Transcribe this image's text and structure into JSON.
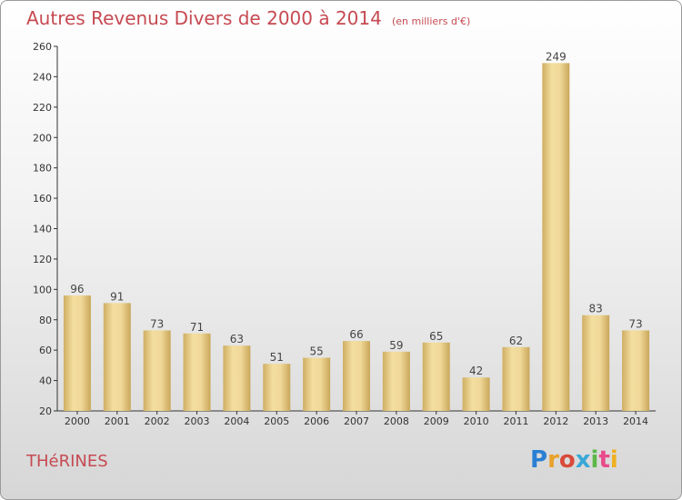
{
  "header": {
    "title": "Autres Revenus Divers de 2000 à 2014",
    "subtitle": "(en milliers d'€)"
  },
  "footer": {
    "town": "THéRINES",
    "logo_text": "Proxiti",
    "logo_colors": [
      "#2a7fd4",
      "#e8a12a",
      "#d94a3a",
      "#3aa8d8",
      "#5cb848",
      "#e84a8a",
      "#f0b020"
    ]
  },
  "colors": {
    "bar": "#e3c67f",
    "bar_light": "#f6e2a8",
    "axis": "#333333",
    "accent": "#c64a52"
  },
  "chart_data": {
    "type": "bar",
    "categories": [
      "2000",
      "2001",
      "2002",
      "2003",
      "2004",
      "2005",
      "2006",
      "2007",
      "2008",
      "2009",
      "2010",
      "2011",
      "2012",
      "2013",
      "2014"
    ],
    "values": [
      96,
      91,
      73,
      71,
      63,
      51,
      55,
      66,
      59,
      65,
      42,
      62,
      249,
      83,
      73
    ],
    "ylim": [
      20,
      260
    ],
    "yticks": [
      20,
      40,
      60,
      80,
      100,
      120,
      140,
      160,
      180,
      200,
      220,
      240,
      260
    ],
    "grid": false,
    "legend": "none"
  }
}
